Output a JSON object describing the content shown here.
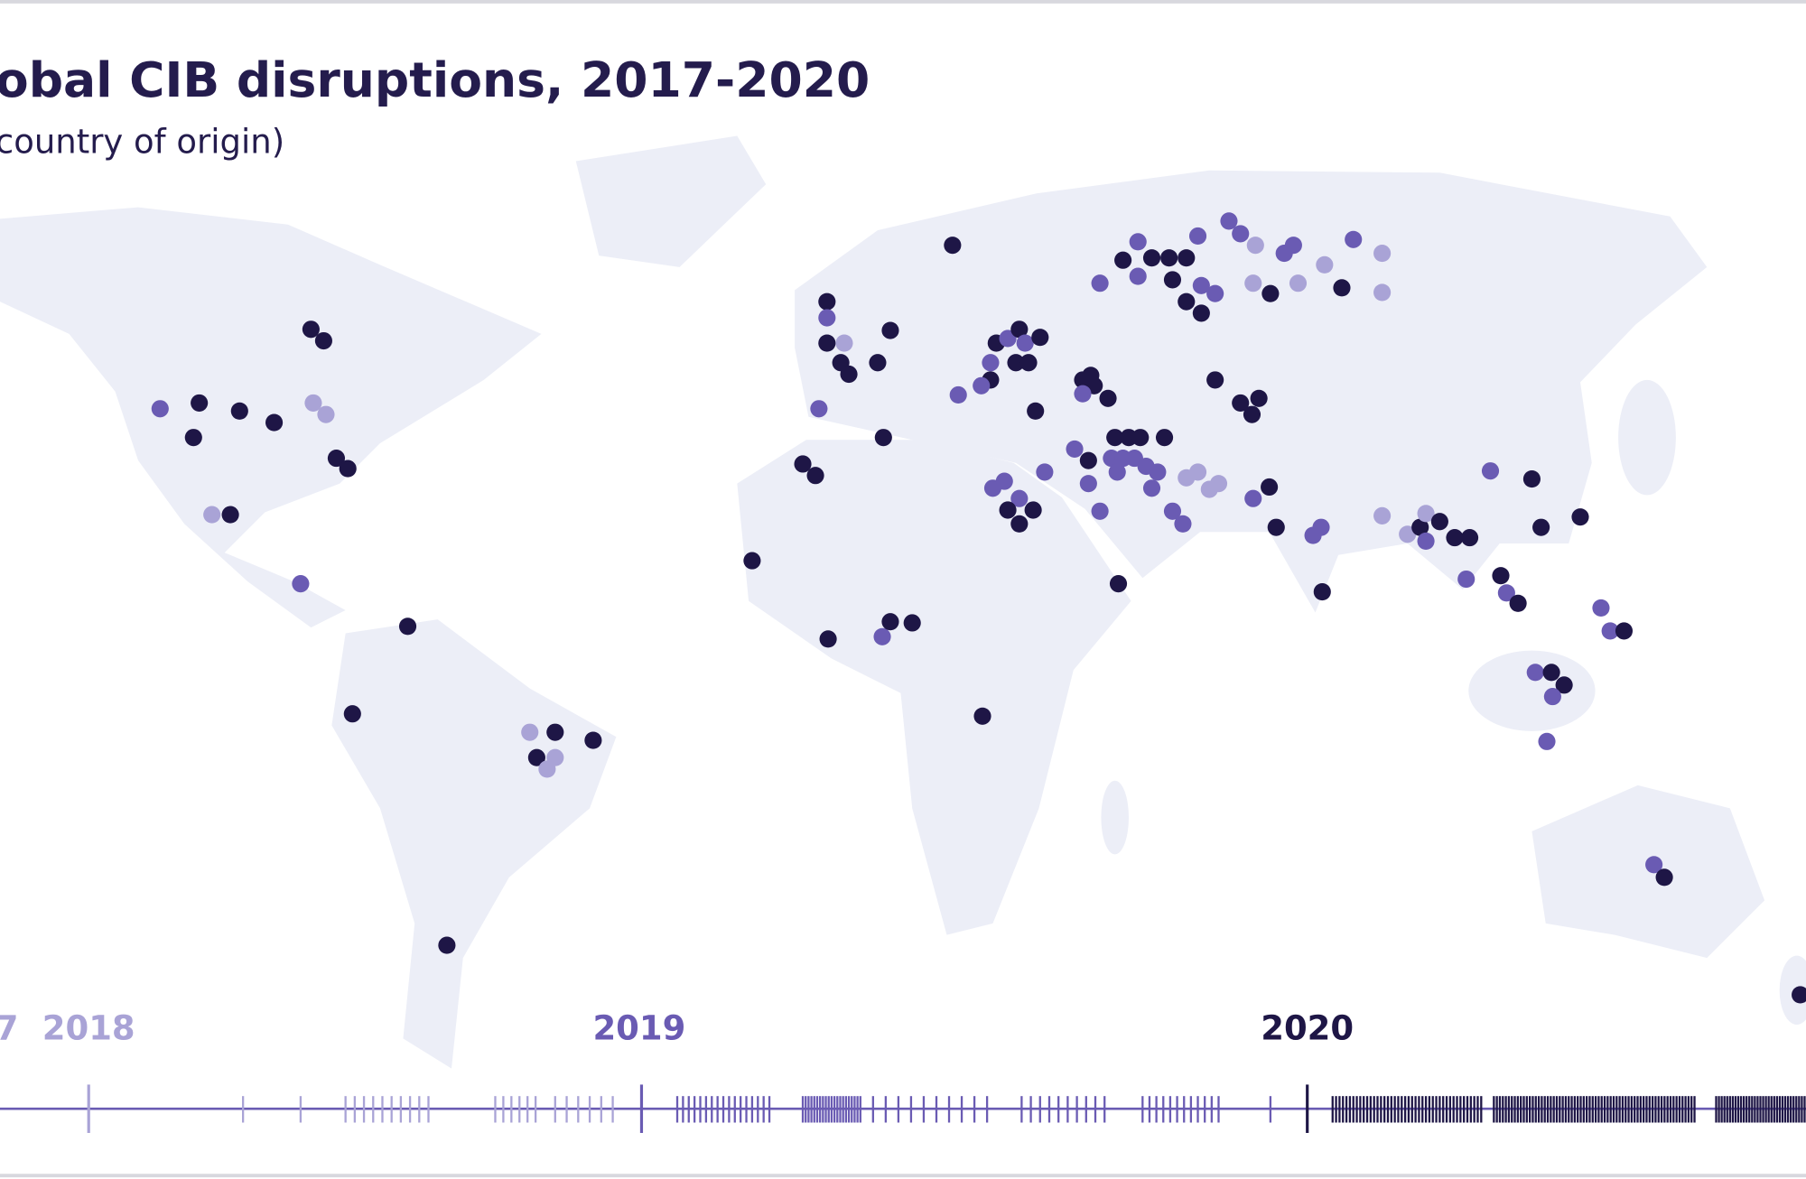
{
  "title": "obal CIB disruptions, 2017-2020",
  "subtitle": "country of origin)",
  "timeline": {
    "labels": [
      "7",
      "2018",
      "2019",
      "2020"
    ]
  }
}
